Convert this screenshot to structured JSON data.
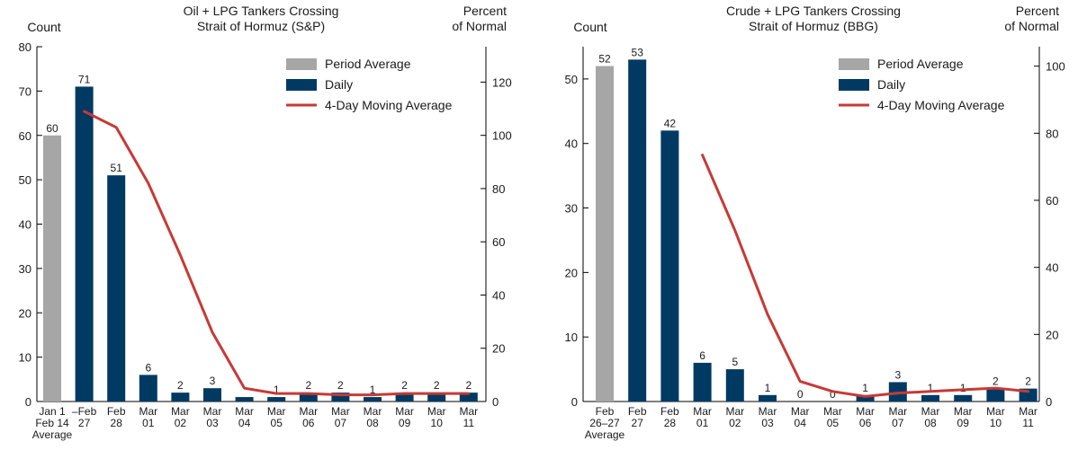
{
  "chart_data": [
    {
      "type": "bar",
      "title": "Oil + LPG Tankers Crossing Strait of Hormuz (S&P)",
      "title_lines": [
        "Oil + LPG Tankers Crossing",
        "Strait of Hormuz (S&P)"
      ],
      "ylabel_left": "Count",
      "ylabel_right_lines": [
        "Percent",
        "of Normal"
      ],
      "ylim_left": [
        0,
        80
      ],
      "yticks_left": [
        0,
        10,
        20,
        30,
        40,
        50,
        60,
        70,
        80
      ],
      "ylim_right": [
        0,
        133.3
      ],
      "yticks_right": [
        0,
        20,
        40,
        60,
        80,
        100,
        120
      ],
      "categories": [
        [
          "Jan 1",
          "Feb 14",
          "Average"
        ],
        [
          "–Feb",
          "27"
        ],
        [
          "Feb",
          "28"
        ],
        [
          "Mar",
          "01"
        ],
        [
          "Mar",
          "02"
        ],
        [
          "Mar",
          "03"
        ],
        [
          "Mar",
          "04"
        ],
        [
          "Mar",
          "05"
        ],
        [
          "Mar",
          "06"
        ],
        [
          "Mar",
          "07"
        ],
        [
          "Mar",
          "08"
        ],
        [
          "Mar",
          "09"
        ],
        [
          "Mar",
          "10"
        ],
        [
          "Mar",
          "11"
        ]
      ],
      "values": [
        60,
        71,
        51,
        6,
        2,
        3,
        1,
        1,
        2,
        2,
        1,
        2,
        2,
        2
      ],
      "value_labels": [
        "60",
        "71",
        "51",
        "6",
        "2",
        "3",
        "",
        "1",
        "2",
        "2",
        "1",
        "2",
        "2",
        "2"
      ],
      "bar_types": [
        "period",
        "daily",
        "daily",
        "daily",
        "daily",
        "daily",
        "daily",
        "daily",
        "daily",
        "daily",
        "daily",
        "daily",
        "daily",
        "daily"
      ],
      "moving_average": {
        "name": "4-Day Moving Average",
        "axis": "right",
        "x_index": [
          1,
          2,
          3,
          4,
          5,
          6,
          7,
          8,
          9,
          10,
          11,
          12,
          13
        ],
        "values": [
          109,
          103,
          82,
          55,
          26,
          5,
          3,
          3,
          2.5,
          2.5,
          3,
          3,
          3
        ]
      },
      "legend": {
        "placement": "top-right",
        "entries": [
          "Period Average",
          "Daily",
          "4-Day Moving Average"
        ]
      }
    },
    {
      "type": "bar",
      "title": "Crude + LPG Tankers Crossing Strait of Hormuz (BBG)",
      "title_lines": [
        "Crude + LPG Tankers Crossing",
        "Strait of Hormuz (BBG)"
      ],
      "ylabel_left": "Count",
      "ylabel_right_lines": [
        "Percent",
        "of Normal"
      ],
      "ylim_left": [
        0,
        55
      ],
      "yticks_left": [
        0,
        10,
        20,
        30,
        40,
        50
      ],
      "ylim_right": [
        0,
        105.8
      ],
      "yticks_right": [
        0,
        20,
        40,
        60,
        80,
        100
      ],
      "categories": [
        [
          "Feb",
          "26–27",
          "Average"
        ],
        [
          "Feb",
          "27"
        ],
        [
          "Feb",
          "28"
        ],
        [
          "Mar",
          "01"
        ],
        [
          "Mar",
          "02"
        ],
        [
          "Mar",
          "03"
        ],
        [
          "Mar",
          "04"
        ],
        [
          "Mar",
          "05"
        ],
        [
          "Mar",
          "06"
        ],
        [
          "Mar",
          "07"
        ],
        [
          "Mar",
          "08"
        ],
        [
          "Mar",
          "09"
        ],
        [
          "Mar",
          "10"
        ],
        [
          "Mar",
          "11"
        ]
      ],
      "values": [
        52,
        53,
        42,
        6,
        5,
        1,
        0,
        0,
        1,
        3,
        1,
        1,
        2,
        2
      ],
      "value_labels": [
        "52",
        "53",
        "42",
        "6",
        "5",
        "1",
        "0",
        "0",
        "1",
        "3",
        "1",
        "1",
        "2",
        "2"
      ],
      "bar_types": [
        "period",
        "daily",
        "daily",
        "daily",
        "daily",
        "daily",
        "daily",
        "daily",
        "daily",
        "daily",
        "daily",
        "daily",
        "daily",
        "daily"
      ],
      "moving_average": {
        "name": "4-Day Moving Average",
        "axis": "right",
        "x_index": [
          3,
          4,
          5,
          6,
          7,
          8,
          9,
          10,
          11,
          12,
          13
        ],
        "values": [
          73.5,
          51,
          26,
          6,
          3,
          1.5,
          2.5,
          3,
          3.5,
          4,
          3
        ]
      },
      "legend": {
        "placement": "top-right",
        "entries": [
          "Period Average",
          "Daily",
          "4-Day Moving Average"
        ]
      }
    }
  ],
  "colors": {
    "period": "#a6a6a6",
    "daily": "#003a63",
    "line": "#c63a36",
    "axis": "#000000",
    "text": "#1a1a1a"
  }
}
